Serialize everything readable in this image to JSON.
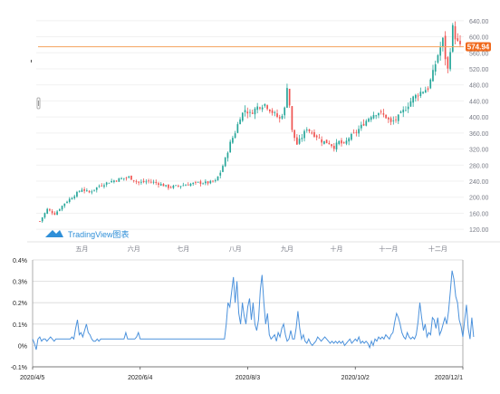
{
  "colors": {
    "up": "#26a69a",
    "down": "#ef5350",
    "price_line": "#f5a25d",
    "price_badge": "#f0691c",
    "line": "#4c92dc",
    "axis_text": "#787b86",
    "grid": "#d8d8d8",
    "watermark": "#2f8fd8"
  },
  "chart_data": [
    {
      "type": "candlestick",
      "title": "",
      "watermark": "TradingView图表",
      "last_price_label": "574.94",
      "last_price": 574.94,
      "ylim": [
        100,
        660
      ],
      "y_ticks": [
        120,
        160,
        200,
        240,
        280,
        320,
        360,
        400,
        440,
        480,
        520,
        560,
        600,
        640
      ],
      "y_tick_labels": [
        "120.00",
        "160.00",
        "200.00",
        "240.00",
        "280.00",
        "320.00",
        "360.00",
        "400.00",
        "440.00",
        "480.00",
        "520.00",
        "560.00",
        "600.00",
        "640.00"
      ],
      "x_range": [
        0,
        170
      ],
      "x_ticks": [
        {
          "label": "五月",
          "x": 17
        },
        {
          "label": "六月",
          "x": 38
        },
        {
          "label": "七月",
          "x": 58
        },
        {
          "label": "八月",
          "x": 79
        },
        {
          "label": "九月",
          "x": 100
        },
        {
          "label": "十月",
          "x": 120
        },
        {
          "label": "十一月",
          "x": 141
        },
        {
          "label": "十二月",
          "x": 161
        }
      ],
      "close_path": [
        [
          0,
          140
        ],
        [
          3,
          170
        ],
        [
          6,
          158
        ],
        [
          10,
          185
        ],
        [
          14,
          205
        ],
        [
          17,
          220
        ],
        [
          20,
          212
        ],
        [
          24,
          228
        ],
        [
          28,
          238
        ],
        [
          32,
          245
        ],
        [
          36,
          250
        ],
        [
          40,
          236
        ],
        [
          44,
          240
        ],
        [
          48,
          234
        ],
        [
          52,
          225
        ],
        [
          56,
          228
        ],
        [
          60,
          232
        ],
        [
          64,
          236
        ],
        [
          68,
          236
        ],
        [
          71,
          240
        ],
        [
          73,
          262
        ],
        [
          75,
          295
        ],
        [
          77,
          335
        ],
        [
          79,
          362
        ],
        [
          81,
          400
        ],
        [
          83,
          418
        ],
        [
          85,
          408
        ],
        [
          88,
          425
        ],
        [
          91,
          432
        ],
        [
          94,
          412
        ],
        [
          97,
          395
        ],
        [
          99,
          420
        ],
        [
          100,
          478
        ],
        [
          101,
          430
        ],
        [
          102,
          365
        ],
        [
          104,
          332
        ],
        [
          106,
          350
        ],
        [
          108,
          372
        ],
        [
          110,
          360
        ],
        [
          112,
          352
        ],
        [
          114,
          340
        ],
        [
          117,
          335
        ],
        [
          119,
          325
        ],
        [
          121,
          338
        ],
        [
          123,
          330
        ],
        [
          125,
          348
        ],
        [
          128,
          362
        ],
        [
          131,
          384
        ],
        [
          134,
          404
        ],
        [
          137,
          412
        ],
        [
          140,
          400
        ],
        [
          142,
          385
        ],
        [
          145,
          400
        ],
        [
          148,
          422
        ],
        [
          151,
          448
        ],
        [
          154,
          462
        ],
        [
          157,
          472
        ],
        [
          159,
          510
        ],
        [
          161,
          555
        ],
        [
          163,
          592
        ],
        [
          164,
          548
        ],
        [
          165,
          518
        ],
        [
          166,
          570
        ],
        [
          167,
          622
        ],
        [
          168,
          600
        ],
        [
          169,
          585
        ],
        [
          170,
          575
        ]
      ]
    },
    {
      "type": "line",
      "title": "",
      "ylim": [
        -0.1,
        0.4
      ],
      "y_ticks": [
        -0.1,
        0,
        0.1,
        0.2,
        0.3,
        0.4
      ],
      "y_tick_labels": [
        "-0.1%",
        "0%",
        "0.1%",
        "0.2%",
        "0.3%",
        "0.4%"
      ],
      "x_range": [
        0,
        240
      ],
      "x_ticks": [
        {
          "label": "2020/4/5",
          "x": 0
        },
        {
          "label": "2020/6/4",
          "x": 60
        },
        {
          "label": "2020/8/3",
          "x": 120
        },
        {
          "label": "2020/10/2",
          "x": 180
        },
        {
          "label": "2020/12/1",
          "x": 240
        }
      ],
      "values": [
        0.03,
        0.01,
        -0.02,
        0.03,
        0.04,
        0.02,
        0.03,
        0.03,
        0.02,
        0.03,
        0.04,
        0.03,
        0.02,
        0.03,
        0.03,
        0.03,
        0.03,
        0.03,
        0.03,
        0.03,
        0.03,
        0.03,
        0.04,
        0.03,
        0.08,
        0.12,
        0.05,
        0.06,
        0.04,
        0.07,
        0.1,
        0.06,
        0.05,
        0.03,
        0.02,
        0.02,
        0.03,
        0.02,
        0.03,
        0.03,
        0.03,
        0.03,
        0.03,
        0.03,
        0.03,
        0.03,
        0.03,
        0.03,
        0.03,
        0.03,
        0.03,
        0.03,
        0.06,
        0.03,
        0.03,
        0.03,
        0.03,
        0.03,
        0.04,
        0.06,
        0.03,
        0.03,
        0.03,
        0.03,
        0.03,
        0.03,
        0.03,
        0.03,
        0.03,
        0.03,
        0.03,
        0.03,
        0.03,
        0.03,
        0.03,
        0.03,
        0.03,
        0.03,
        0.03,
        0.03,
        0.03,
        0.03,
        0.03,
        0.03,
        0.03,
        0.03,
        0.03,
        0.03,
        0.03,
        0.03,
        0.03,
        0.03,
        0.03,
        0.03,
        0.03,
        0.03,
        0.03,
        0.03,
        0.03,
        0.03,
        0.03,
        0.03,
        0.03,
        0.03,
        0.03,
        0.03,
        0.03,
        0.03,
        0.1,
        0.2,
        0.18,
        0.25,
        0.32,
        0.2,
        0.3,
        0.15,
        0.1,
        0.2,
        0.14,
        0.1,
        0.18,
        0.22,
        0.12,
        0.2,
        0.1,
        0.07,
        0.12,
        0.26,
        0.33,
        0.2,
        0.1,
        0.15,
        0.05,
        0.03,
        0.04,
        0.05,
        0.02,
        0.06,
        0.04,
        0.08,
        0.1,
        0.05,
        0.02,
        0.03,
        0.07,
        0.03,
        0.03,
        0.08,
        0.16,
        0.08,
        0.03,
        0.05,
        0.02,
        0.01,
        0.03,
        0.01,
        0.0,
        0.01,
        0.02,
        0.04,
        0.03,
        0.02,
        0.03,
        0.04,
        0.03,
        0.02,
        0.01,
        0.02,
        0.01,
        0.02,
        0.01,
        0.02,
        0.01,
        0.02,
        0.0,
        0.01,
        0.02,
        0.03,
        0.01,
        0.02,
        0.03,
        0.02,
        0.04,
        0.01,
        0.02,
        0.01,
        0.02,
        0.01,
        -0.01,
        0.02,
        0.0,
        0.03,
        0.02,
        0.04,
        0.03,
        0.04,
        0.03,
        0.05,
        0.04,
        0.03,
        0.05,
        0.06,
        0.11,
        0.15,
        0.13,
        0.1,
        0.06,
        0.04,
        0.03,
        0.06,
        0.04,
        0.03,
        0.04,
        0.03,
        0.05,
        0.11,
        0.2,
        0.13,
        0.07,
        0.1,
        0.04,
        0.06,
        0.05,
        0.13,
        0.12,
        0.08,
        0.13,
        0.05,
        0.07,
        0.1,
        0.13,
        0.1,
        0.16,
        0.25,
        0.35,
        0.31,
        0.23,
        0.2,
        0.12,
        0.09,
        0.04,
        0.12,
        0.19,
        0.08,
        0.03,
        0.13,
        0.04
      ]
    }
  ]
}
